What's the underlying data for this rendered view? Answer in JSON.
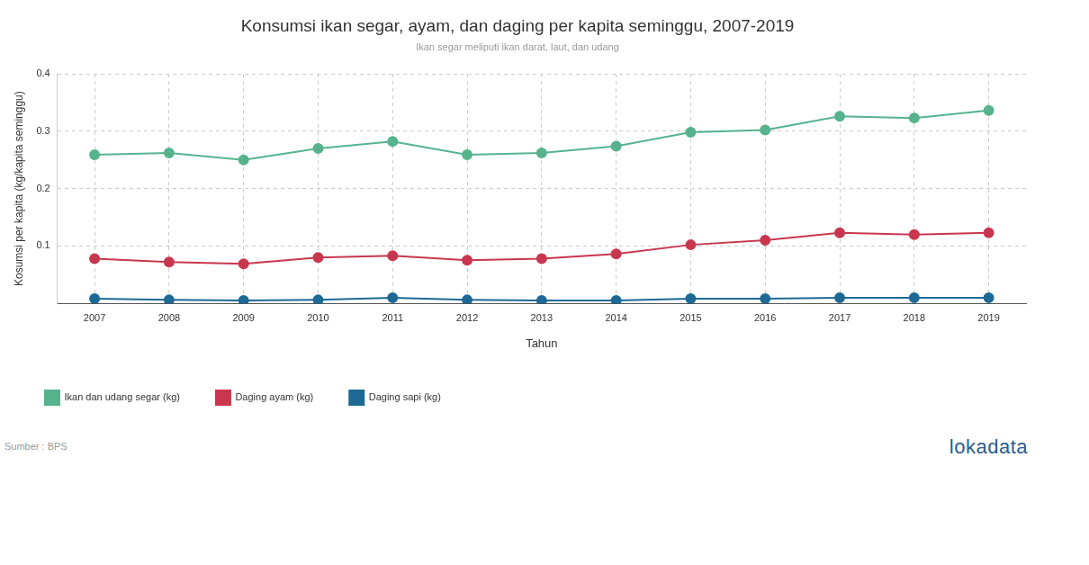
{
  "chart_data": {
    "type": "line",
    "title": "Konsumsi ikan segar, ayam, dan daging per kapita seminggu, 2007-2019",
    "subtitle": "Ikan segar meliputi ikan darat, laut, dan udang",
    "x_label": "Tahun",
    "y_label": "Kosumsi per kapita (kg/kapita seminggu)",
    "categories": [
      "2007",
      "2008",
      "2009",
      "2010",
      "2011",
      "2012",
      "2013",
      "2014",
      "2015",
      "2016",
      "2017",
      "2018",
      "2019"
    ],
    "series": [
      {
        "name": "Ikan dan udang segar (kg)",
        "color": "#56b38d",
        "values": [
          0.259,
          0.262,
          0.25,
          0.27,
          0.282,
          0.259,
          0.262,
          0.274,
          0.298,
          0.302,
          0.326,
          0.323,
          0.336
        ]
      },
      {
        "name": "Daging ayam (kg)",
        "color": "#c9374f",
        "values": [
          0.078,
          0.072,
          0.069,
          0.08,
          0.083,
          0.075,
          0.078,
          0.086,
          0.102,
          0.11,
          0.123,
          0.12,
          0.123
        ]
      },
      {
        "name": "Daging sapi (kg)",
        "color": "#1d6996",
        "values": [
          0.008,
          0.006,
          0.005,
          0.006,
          0.0096,
          0.006,
          0.005,
          0.005,
          0.008,
          0.008,
          0.0096,
          0.0096,
          0.0096
        ]
      }
    ],
    "ylim": [
      0,
      0.4
    ],
    "yticks": [
      0.1,
      0.2,
      0.3,
      0.4
    ],
    "grid": true,
    "legend": "bottom-left",
    "marker": "circle"
  },
  "source": "Sumber : BPS",
  "brand": "lokadata"
}
